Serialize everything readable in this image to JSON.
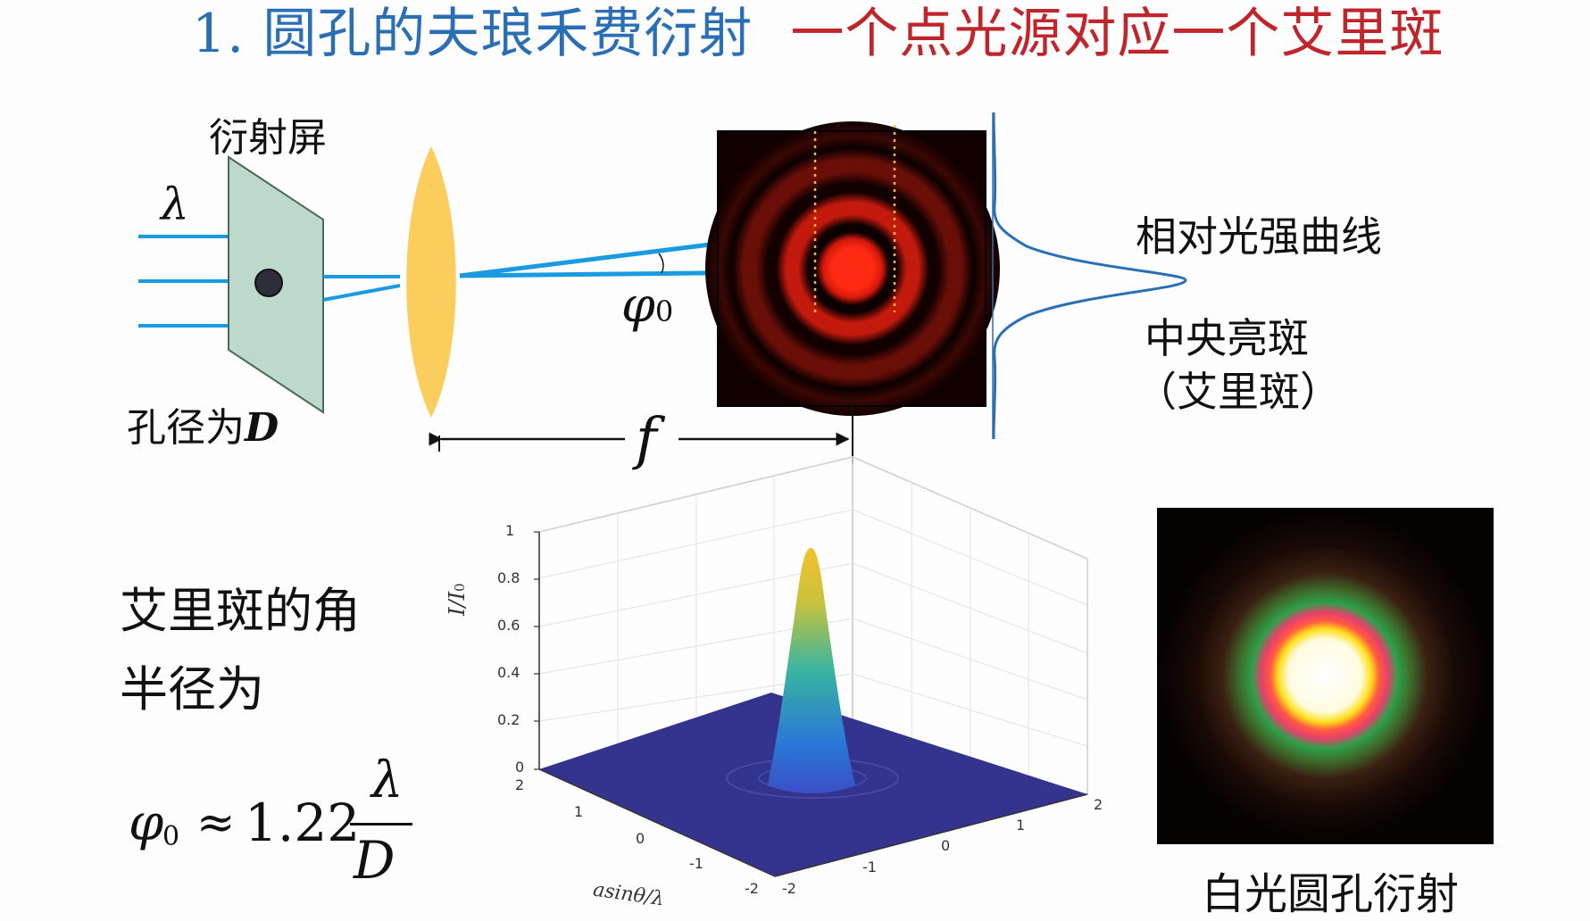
{
  "slide": {
    "title": {
      "number": "1.",
      "main": "圆孔的夫琅禾费衍射",
      "subtitle": "一个点光源对应一个艾里斑"
    },
    "top_diagram": {
      "screen_label": "衍射屏",
      "wavelength_symbol": "λ",
      "aperture_label": "孔径为",
      "aperture_symbol": "D",
      "angle_symbol": "φ",
      "angle_subscript": "0",
      "focal_symbol": "f",
      "intensity_curve_label": "相对光强曲线",
      "central_spot_label": "中央亮斑",
      "airy_label": "（艾里斑）"
    },
    "left_text": {
      "line1": "艾里斑的角",
      "line2": "半径为",
      "formula_lhs": "φ",
      "formula_sub": "0",
      "formula_approx": "≈",
      "formula_coeff": "1.22",
      "formula_num": "λ",
      "formula_den": "D"
    },
    "plot3d": {
      "z_axis_label": "I/I",
      "z_axis_label_sub": "0",
      "z_ticks": [
        "1",
        "0.8",
        "0.6",
        "0.4",
        "0.2",
        "0"
      ],
      "y_ticks": [
        "2",
        "1",
        "0",
        "-1",
        "-2"
      ],
      "x_ticks": [
        "-2",
        "-1",
        "0",
        "1",
        "2"
      ],
      "left_axis_label": "asinθ/λ",
      "colors": {
        "plane": "#34348e",
        "peak_top": "#f2c12e",
        "peak_mid": "#38b4a0",
        "peak_base": "#2a77d8"
      }
    },
    "white_light": {
      "caption": "白光圆孔衍射"
    },
    "colors": {
      "title_blue": "#2a6fb5",
      "title_red": "#c0252b",
      "ray_blue": "#1a9ae0",
      "lens": "#fbcd5c",
      "screen": "#bcd9cb",
      "spot_red": "#ff2a12"
    }
  }
}
